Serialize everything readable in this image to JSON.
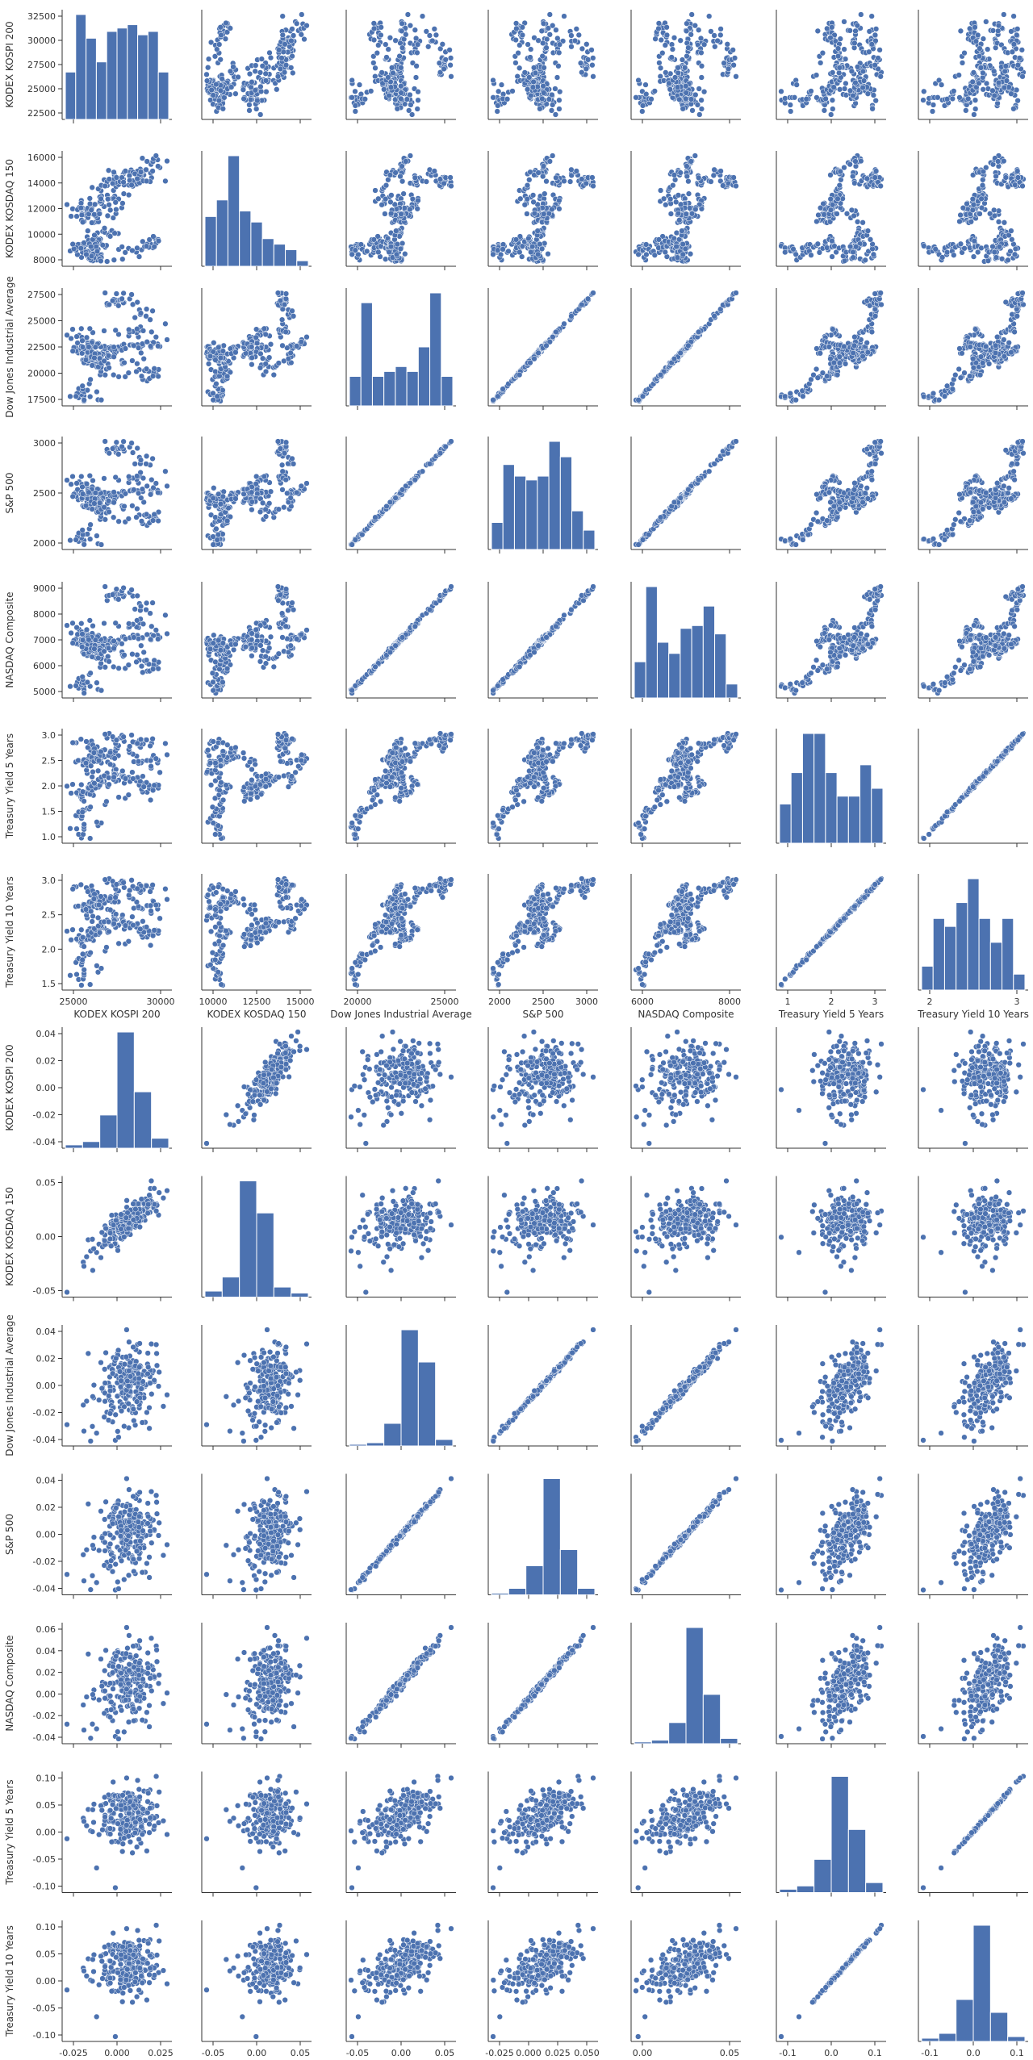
{
  "chart_data": [
    {
      "type": "scatter",
      "title": "",
      "grid": false,
      "legend": "none",
      "color": "#4c72b0",
      "variables": [
        "KODEX KOSPI 200",
        "KODEX KOSDAQ 150",
        "Dow Jones Industrial Average",
        "S&P 500",
        "NASDAQ Composite",
        "Treasury Yield 5 Years",
        "Treasury Yield 10 Years"
      ],
      "x_tick_labels": [
        [
          "25000",
          "30000"
        ],
        [
          "10000",
          "12500",
          "15000"
        ],
        [
          "20000",
          "25000"
        ],
        [
          "2000",
          "2500",
          "3000"
        ],
        [
          "6000",
          "8000"
        ],
        [
          "1",
          "2",
          "3"
        ],
        [
          "2",
          "3"
        ]
      ],
      "y_tick_labels": [
        [
          "22500",
          "25000",
          "27500",
          "30000",
          "32500"
        ],
        [
          "8000",
          "10000",
          "12000",
          "14000",
          "16000"
        ],
        [
          "17500",
          "20000",
          "22500",
          "25000",
          "27500"
        ],
        [
          "2000",
          "2500",
          "3000"
        ],
        [
          "5000",
          "6000",
          "7000",
          "8000",
          "9000"
        ],
        [
          "1.0",
          "1.5",
          "2.0",
          "2.5",
          "3.0"
        ],
        [
          "1.5",
          "2.0",
          "2.5",
          "3.0"
        ]
      ],
      "ranges": [
        [
          21000,
          32500
        ],
        [
          7500,
          16800
        ],
        [
          15500,
          28900
        ],
        [
          1800,
          3250
        ],
        [
          4300,
          9100
        ],
        [
          0.85,
          3.15
        ],
        [
          1.25,
          3.3
        ]
      ],
      "histogram_counts": [
        [
          14,
          31,
          24,
          17,
          26,
          27,
          28,
          25,
          26,
          14
        ],
        [
          9,
          12,
          20,
          10,
          8,
          5,
          4,
          3,
          1
        ],
        [
          6,
          21,
          6,
          7,
          8,
          7,
          12,
          23,
          6
        ],
        [
          7,
          22,
          19,
          18,
          19,
          28,
          24,
          10,
          5
        ],
        [
          13,
          40,
          20,
          16,
          25,
          26,
          33,
          23,
          5
        ],
        [
          5,
          9,
          14,
          14,
          9,
          6,
          6,
          10,
          7
        ],
        [
          3,
          9,
          8,
          11,
          14,
          9,
          6,
          9,
          2
        ]
      ]
    },
    {
      "type": "scatter",
      "title": "",
      "grid": false,
      "legend": "none",
      "color": "#4c72b0",
      "variables": [
        "KODEX KOSPI 200",
        "KODEX KOSDAQ 150",
        "Dow Jones Industrial Average",
        "S&P 500",
        "NASDAQ Composite",
        "Treasury Yield 5 Years",
        "Treasury Yield 10 Years"
      ],
      "x_tick_labels": [
        [
          "-0.025",
          "0.000",
          "0.025"
        ],
        [
          "-0.05",
          "0.00",
          "0.05"
        ],
        [
          "-0.05",
          "0.00",
          "0.05"
        ],
        [
          "-0.025",
          "0.000",
          "0.025",
          "0.050"
        ],
        [
          "0.00",
          "0.05"
        ],
        [
          "-0.1",
          "0.0",
          "0.1"
        ],
        [
          "-0.1",
          "0.0",
          "0.1"
        ]
      ],
      "y_tick_labels": [
        [
          "-0.04",
          "-0.02",
          "0.00",
          "0.02",
          "0.04"
        ],
        [
          "-0.05",
          "0.00",
          "0.05"
        ],
        [
          "-0.04",
          "-0.02",
          "0.00",
          "0.02",
          "0.04"
        ],
        [
          "-0.04",
          "-0.02",
          "0.00",
          "0.02",
          "0.04"
        ],
        [
          "-0.04",
          "-0.02",
          "0.00",
          "0.02",
          "0.04",
          "0.06"
        ],
        [
          "-0.10",
          "-0.05",
          "0.00",
          "0.05",
          "0.10"
        ],
        [
          "-0.10",
          "-0.05",
          "0.00",
          "0.05",
          "0.10"
        ]
      ],
      "ranges": [
        [
          -0.045,
          0.042
        ],
        [
          -0.09,
          0.07
        ],
        [
          -0.052,
          0.052
        ],
        [
          -0.045,
          0.052
        ],
        [
          -0.045,
          0.062
        ],
        [
          -0.13,
          0.12
        ],
        [
          -0.11,
          0.12
        ]
      ],
      "histogram_counts": [
        [
          2,
          4,
          20,
          70,
          34,
          6
        ],
        [
          3,
          10,
          58,
          42,
          5,
          2
        ],
        [
          1,
          2,
          14,
          72,
          52,
          4
        ],
        [
          1,
          4,
          18,
          72,
          28,
          4
        ],
        [
          1,
          2,
          12,
          66,
          28,
          3
        ],
        [
          2,
          4,
          20,
          70,
          38,
          6
        ],
        [
          2,
          5,
          26,
          72,
          18,
          3
        ]
      ]
    }
  ]
}
